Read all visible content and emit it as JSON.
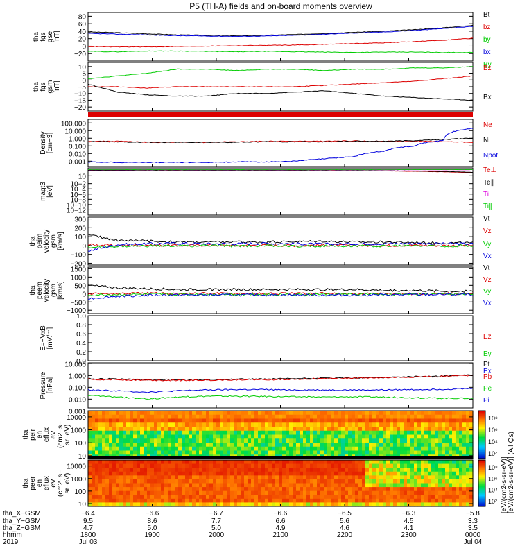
{
  "title": "P5 (TH-A) fields and on-board moments overview",
  "colors": {
    "black": "#000000",
    "red": "#dd0000",
    "green": "#00cc00",
    "blue": "#0000dd"
  },
  "chart_data": [
    {
      "id": "fgs_gse",
      "type": "line",
      "ylabel": [
        "tha",
        "fgs",
        "gse",
        "[nT]"
      ],
      "ylim": [
        -40,
        90
      ],
      "yticks": [
        "80",
        "60",
        "40",
        "20",
        "0",
        "−20"
      ],
      "yticks_v": [
        80,
        60,
        40,
        20,
        0,
        -20
      ],
      "series": [
        {
          "name": "Bt",
          "color": "#000000",
          "values": [
            38,
            36,
            33,
            30,
            29,
            28,
            29,
            31,
            34,
            37,
            40,
            44,
            49,
            56
          ]
        },
        {
          "name": "bz",
          "color": "#dd0000",
          "values": [
            -1,
            -2,
            -2,
            -1,
            0,
            1,
            2,
            3,
            5,
            7,
            9,
            12,
            16,
            21
          ]
        },
        {
          "name": "by",
          "color": "#00cc00",
          "values": [
            -14,
            -15,
            -13,
            -13,
            -14,
            -15,
            -14,
            -15,
            -16,
            -17,
            -16,
            -16,
            -17,
            -17
          ]
        },
        {
          "name": "bx",
          "color": "#0000dd",
          "values": [
            34,
            32,
            30,
            28,
            27,
            26,
            27,
            29,
            32,
            35,
            38,
            42,
            47,
            53
          ]
        }
      ]
    },
    {
      "id": "fgs_gsm",
      "type": "line",
      "ylabel": [
        "tha",
        "fgs",
        "gsm",
        "[nT]"
      ],
      "ylim": [
        -23,
        13
      ],
      "yticks": [
        "10",
        "5",
        "0",
        "−5",
        "−10",
        "−15",
        "−20"
      ],
      "yticks_v": [
        10,
        5,
        0,
        -5,
        -10,
        -15,
        -20
      ],
      "series": [
        {
          "name": "By",
          "color": "#00cc00",
          "values": [
            1,
            3,
            5,
            8,
            8,
            7,
            8,
            8,
            7,
            8,
            8,
            9,
            9,
            10
          ]
        },
        {
          "name": "Bz",
          "color": "#dd0000",
          "values": [
            -5,
            -5,
            -6,
            -5,
            -5,
            -5,
            -5,
            -5,
            -4,
            -3,
            -2,
            -1,
            1,
            3
          ]
        },
        {
          "name": "Bx",
          "color": "#000000",
          "values": [
            -3,
            -9,
            -11,
            -12,
            -12,
            -10,
            -10,
            -9,
            -8,
            -10,
            -12,
            -13,
            -14,
            -15
          ]
        }
      ]
    },
    {
      "id": "density",
      "type": "line",
      "log": true,
      "ylabel": [
        "Density",
        "[cm−3]"
      ],
      "ylim": [
        0.0002,
        300
      ],
      "yticks": [
        "100.000",
        "10.000",
        "1.000",
        "0.100",
        "0.010",
        "0.001"
      ],
      "yticks_v": [
        100,
        10,
        1,
        0.1,
        0.01,
        0.001
      ],
      "series": [
        {
          "name": "Ne",
          "color": "#dd0000",
          "values": [
            0.4,
            0.4,
            0.3,
            0.3,
            0.3,
            0.35,
            0.4,
            0.4,
            0.4,
            0.45,
            0.4,
            0.4,
            0.35,
            0.3
          ]
        },
        {
          "name": "Ni",
          "color": "#000000",
          "values": [
            0.35,
            0.35,
            0.3,
            0.3,
            0.3,
            0.3,
            0.35,
            0.35,
            0.35,
            0.4,
            0.4,
            0.5,
            0.7,
            1.0
          ]
        },
        {
          "name": "Npot",
          "color": "#0000dd",
          "values": [
            0.0008,
            0.0007,
            0.0007,
            0.0007,
            0.0007,
            0.0008,
            0.0008,
            0.001,
            0.002,
            0.004,
            0.02,
            0.1,
            0.5,
            20
          ]
        }
      ]
    },
    {
      "id": "magt3",
      "type": "line",
      "log": true,
      "ylabel": [
        "magt3",
        "[eV]"
      ],
      "ylim": [
        1e-14,
        10000
      ],
      "yticks": [
        "10",
        "10−2",
        "10−4",
        "10−6",
        "10−8",
        "10−10",
        "10−12"
      ],
      "yticks_v": [
        10,
        0.01,
        0.0001,
        1e-06,
        1e-08,
        1e-10,
        1e-12
      ],
      "series": [
        {
          "name": "Te⊥",
          "color": "#dd0000",
          "values": [
            1000,
            1000,
            900,
            900,
            900,
            900,
            900,
            900,
            900,
            800,
            700,
            500,
            300,
            150
          ]
        },
        {
          "name": "Te∥",
          "color": "#000000",
          "values": [
            1200,
            1100,
            1000,
            1000,
            1000,
            1000,
            1000,
            1000,
            900,
            900,
            800,
            600,
            400,
            200
          ]
        },
        {
          "name": "Ti⊥",
          "color": "#dd00dd",
          "values": [
            2000,
            2000,
            2000,
            2000,
            2000,
            2000,
            2000,
            2000,
            2000,
            2000,
            2000,
            2000,
            2000,
            2000
          ]
        },
        {
          "name": "Ti∥",
          "color": "#00cc00",
          "values": [
            2500,
            2500,
            2500,
            2500,
            2500,
            2500,
            2500,
            2500,
            2500,
            2500,
            2500,
            2500,
            2500,
            2500
          ]
        }
      ]
    },
    {
      "id": "peim_velocity",
      "type": "line",
      "ylabel": [
        "tha",
        "peim",
        "velocity",
        "gsm",
        "[km/s]"
      ],
      "ylim": [
        -220,
        320
      ],
      "yticks": [
        "300",
        "200",
        "100",
        "0",
        "−100",
        "−200"
      ],
      "yticks_v": [
        300,
        200,
        100,
        0,
        -100,
        -200
      ],
      "series": [
        {
          "name": "Vt",
          "color": "#000000",
          "values": [
            120,
            60,
            50,
            40,
            40,
            40,
            40,
            45,
            50,
            40,
            40,
            35,
            30,
            30
          ]
        },
        {
          "name": "Vz",
          "color": "#dd0000",
          "values": [
            10,
            0,
            5,
            0,
            5,
            0,
            5,
            0,
            5,
            0,
            0,
            5,
            0,
            0
          ]
        },
        {
          "name": "Vy",
          "color": "#00cc00",
          "values": [
            -20,
            -10,
            -5,
            -5,
            0,
            -5,
            0,
            -5,
            -5,
            0,
            -5,
            0,
            -5,
            0
          ]
        },
        {
          "name": "Vx",
          "color": "#0000dd",
          "values": [
            -60,
            10,
            20,
            25,
            20,
            20,
            25,
            20,
            15,
            20,
            20,
            25,
            20,
            20
          ]
        }
      ]
    },
    {
      "id": "peem_velocity",
      "type": "line",
      "ylabel": [
        "tha",
        "peem",
        "velocity",
        "gsm",
        "[km/s]"
      ],
      "ylim": [
        -1200,
        1600
      ],
      "yticks": [
        "1500",
        "1000",
        "500",
        "0",
        "−500",
        "−1000"
      ],
      "yticks_v": [
        1500,
        1000,
        500,
        0,
        -500,
        -1000
      ],
      "series": [
        {
          "name": "Vt",
          "color": "#000000",
          "values": [
            500,
            350,
            300,
            250,
            250,
            250,
            250,
            250,
            250,
            250,
            200,
            200,
            150,
            150
          ]
        },
        {
          "name": "Vz",
          "color": "#dd0000",
          "values": [
            0,
            0,
            20,
            0,
            20,
            0,
            0,
            0,
            20,
            0,
            0,
            0,
            0,
            0
          ]
        },
        {
          "name": "Vy",
          "color": "#00cc00",
          "values": [
            -100,
            -60,
            -50,
            -40,
            -40,
            -40,
            -50,
            -40,
            -40,
            -40,
            -40,
            -30,
            -30,
            -30
          ]
        },
        {
          "name": "Vx",
          "color": "#0000dd",
          "values": [
            -300,
            -150,
            -100,
            -80,
            -80,
            -80,
            -80,
            -80,
            -90,
            -80,
            -80,
            -60,
            -50,
            -50
          ]
        }
      ]
    },
    {
      "id": "efield",
      "type": "line",
      "ylabel": [
        "E=−VxB",
        "[mV/m]"
      ],
      "ylim": [
        0,
        1
      ],
      "yticks": [
        "1.0",
        "0.8",
        "0.6",
        "0.4",
        "0.2",
        "0.0"
      ],
      "yticks_v": [
        1.0,
        0.8,
        0.6,
        0.4,
        0.2,
        0.0
      ],
      "series": [
        {
          "name": "Ez",
          "color": "#dd0000",
          "values": []
        },
        {
          "name": "Ey",
          "color": "#00cc00",
          "values": []
        },
        {
          "name": "Ex",
          "color": "#0000dd",
          "values": []
        }
      ]
    },
    {
      "id": "pressure",
      "type": "line",
      "log": true,
      "ylabel": [
        "Pressure",
        "[nPa]"
      ],
      "ylim": [
        0.0018,
        12
      ],
      "yticks": [
        "10.000",
        "1.000",
        "0.100",
        "0.010",
        "0.001"
      ],
      "yticks_v": [
        10,
        1,
        0.1,
        0.01,
        0.001
      ],
      "series": [
        {
          "name": "Pt",
          "color": "#000000",
          "values": [
            0.55,
            0.5,
            0.45,
            0.45,
            0.45,
            0.5,
            0.5,
            0.55,
            0.6,
            0.65,
            0.7,
            0.8,
            0.9,
            1.1
          ]
        },
        {
          "name": "Pb",
          "color": "#dd0000",
          "values": [
            0.5,
            0.45,
            0.4,
            0.4,
            0.4,
            0.45,
            0.45,
            0.5,
            0.55,
            0.6,
            0.65,
            0.75,
            0.85,
            1.05
          ]
        },
        {
          "name": "Pe",
          "color": "#00cc00",
          "values": [
            0.02,
            0.015,
            0.01,
            0.015,
            0.018,
            0.018,
            0.017,
            0.016,
            0.015,
            0.016,
            0.015,
            0.013,
            0.012,
            0.012
          ]
        },
        {
          "name": "Pi",
          "color": "#0000dd",
          "values": [
            0.06,
            0.05,
            0.04,
            0.05,
            0.06,
            0.065,
            0.065,
            0.06,
            0.06,
            0.06,
            0.06,
            0.065,
            0.07,
            0.08
          ]
        }
      ]
    },
    {
      "id": "peir_spectrogram",
      "type": "heatmap",
      "log": true,
      "ylabel": [
        "tha",
        "peir",
        "en",
        "eflux",
        "eV",
        "(cm2−s−",
        "sr−eV)"
      ],
      "ylim": [
        6,
        30000
      ],
      "yticks": [
        "10000",
        "1000",
        "100",
        "10"
      ],
      "yticks_v": [
        10000,
        1000,
        100,
        10
      ],
      "colorbar_label": "[eV/(cm2-s-sr-eV)] (All Qs)"
    },
    {
      "id": "peer_spectrogram",
      "type": "heatmap",
      "log": true,
      "ylabel": [
        "tha",
        "peer",
        "en",
        "eflux",
        "eV",
        "(cm2−s−",
        "sr−eV)"
      ],
      "ylim": [
        6,
        30000
      ],
      "yticks": [
        "10000",
        "1000",
        "100",
        "10"
      ],
      "yticks_v": [
        10000,
        1000,
        100,
        10
      ],
      "colorbar_label": "[eV/(cm2-s-sr-eV)]"
    }
  ],
  "colorbar_ticks": [
    "10⁸",
    "10⁶",
    "10⁴",
    "10²"
  ],
  "xaxis": {
    "row_labels": [
      "tha_X−GSM",
      "tha_Y−GSM",
      "tha_Z−GSM",
      "hhmm",
      "2019"
    ],
    "columns": [
      [
        "−6.4",
        "9.5",
        "4.7",
        "1800",
        "Jul 03"
      ],
      [
        "−6.6",
        "8.6",
        "5.0",
        "1900",
        ""
      ],
      [
        "−6.7",
        "7.7",
        "5.0",
        "2000",
        ""
      ],
      [
        "−6.6",
        "6.6",
        "4.9",
        "2100",
        ""
      ],
      [
        "−6.5",
        "5.6",
        "4.6",
        "2200",
        ""
      ],
      [
        "−6.3",
        "4.5",
        "4.1",
        "2300",
        ""
      ],
      [
        "−5.8",
        "3.3",
        "3.5",
        "0000",
        "Jul 04"
      ]
    ]
  }
}
